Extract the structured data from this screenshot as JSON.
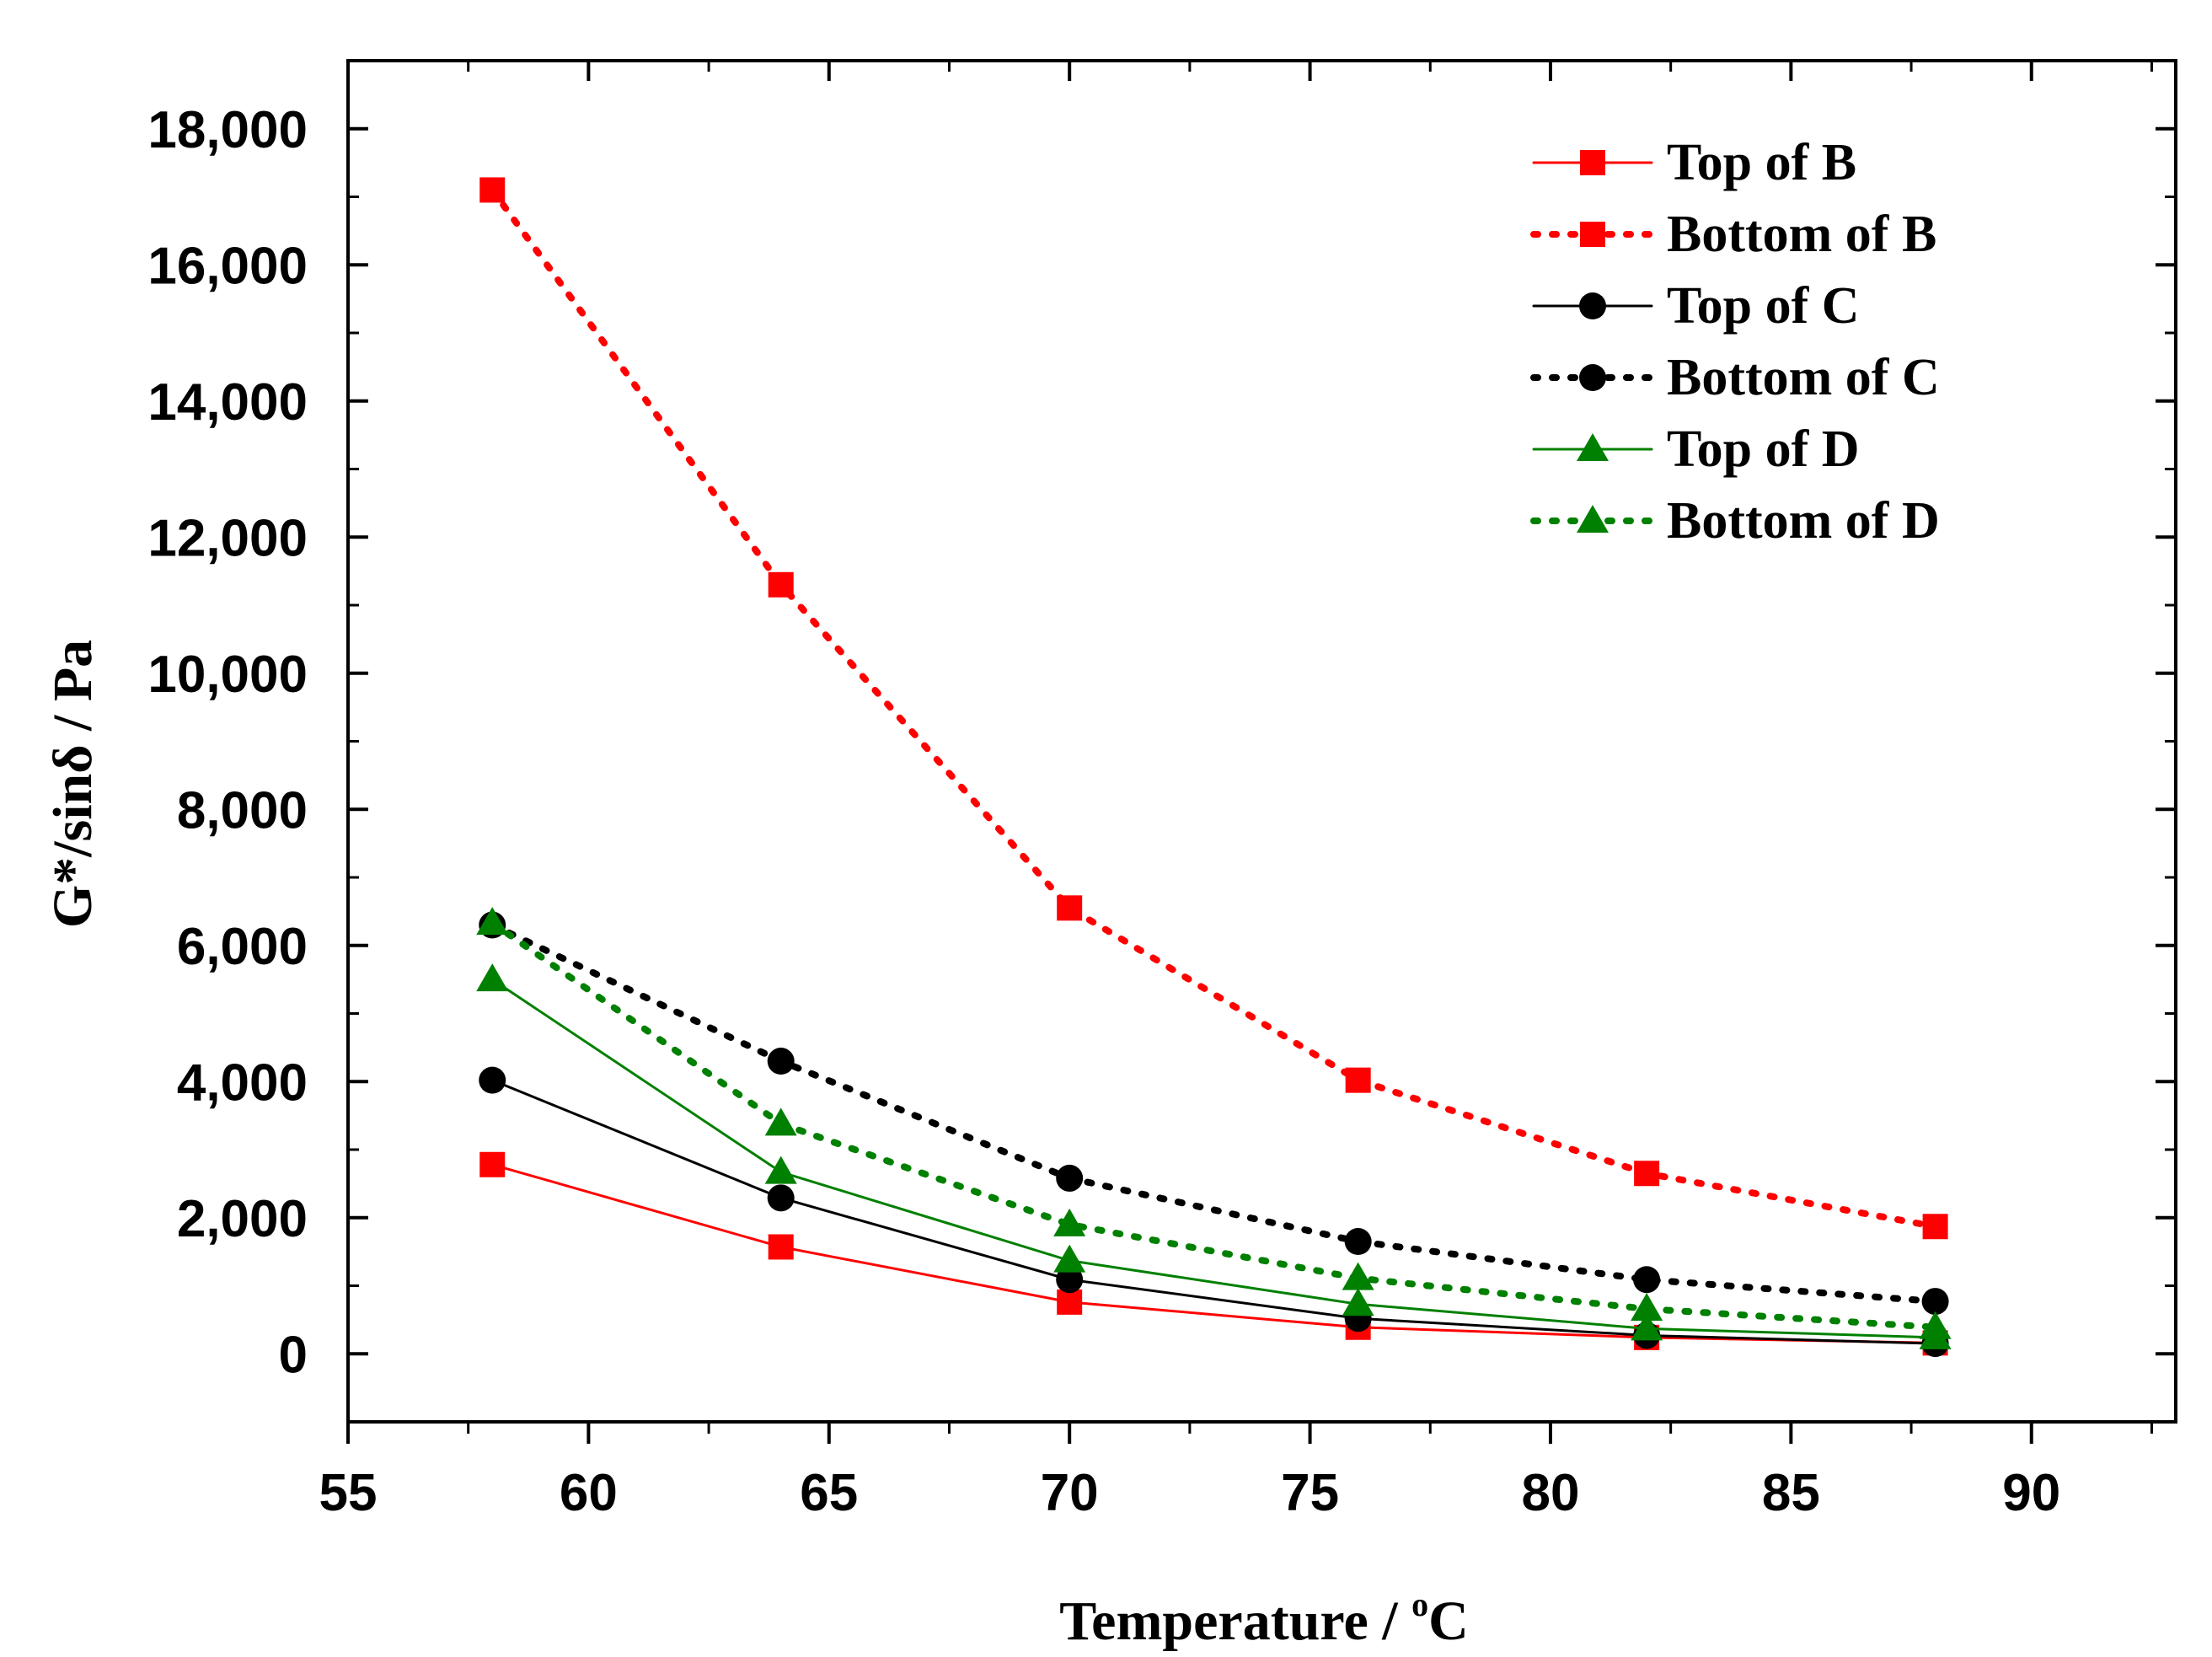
{
  "chart_data": {
    "type": "line",
    "title": "",
    "xlabel": "Temperature / ",
    "xlabel_unit_sup": "o",
    "xlabel_unit": "C",
    "ylabel": "G*/sinδ /  Pa",
    "xlim": [
      55,
      93
    ],
    "ylim": [
      -1000,
      19000
    ],
    "x_ticks": [
      55,
      60,
      65,
      70,
      75,
      80,
      85,
      90
    ],
    "y_ticks": [
      0,
      2000,
      4000,
      6000,
      8000,
      10000,
      12000,
      14000,
      16000,
      18000
    ],
    "x_tick_labels": [
      "55",
      "60",
      "65",
      "70",
      "75",
      "80",
      "85",
      "90"
    ],
    "y_tick_labels": [
      "0",
      "2,000",
      "4,000",
      "6,000",
      "8,000",
      "10,000",
      "12,000",
      "14,000",
      "16,000",
      "18,000"
    ],
    "legend_position": "top-right",
    "x": [
      58,
      64,
      70,
      76,
      82,
      88
    ],
    "series": [
      {
        "name": "Top of B",
        "color": "#ff0000",
        "style": "solid",
        "marker": "square",
        "values": [
          2780,
          1570,
          760,
          390,
          240,
          160
        ]
      },
      {
        "name": "Bottom of B",
        "color": "#ff0000",
        "style": "dotted",
        "marker": "square",
        "values": [
          17100,
          11300,
          6550,
          4020,
          2650,
          1870
        ]
      },
      {
        "name": "Top of C",
        "color": "#000000",
        "style": "solid",
        "marker": "circle",
        "values": [
          4020,
          2290,
          1090,
          520,
          270,
          150
        ]
      },
      {
        "name": "Bottom of C",
        "color": "#000000",
        "style": "dotted",
        "marker": "circle",
        "values": [
          6300,
          4300,
          2580,
          1650,
          1090,
          770
        ]
      },
      {
        "name": "Top of D",
        "color": "#008000",
        "style": "solid",
        "marker": "triangle",
        "values": [
          5500,
          2670,
          1370,
          730,
          370,
          240
        ]
      },
      {
        "name": "Bottom of D",
        "color": "#008000",
        "style": "dotted",
        "marker": "triangle",
        "values": [
          6330,
          3380,
          1900,
          1110,
          660,
          390
        ]
      }
    ]
  }
}
